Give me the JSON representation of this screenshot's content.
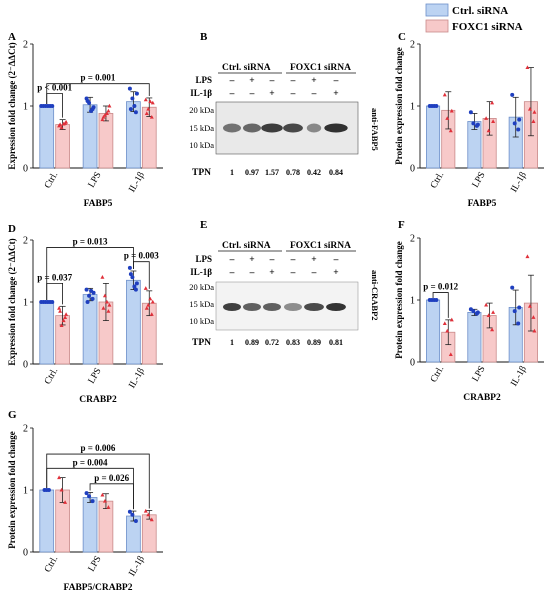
{
  "legend": {
    "items": [
      {
        "label": "Ctrl. siRNA",
        "color": "#bcd3f2"
      },
      {
        "label": "FOXC1 siRNA",
        "color": "#f7c9c9"
      }
    ]
  },
  "colors": {
    "ctrl_fill": "#bcd3f2",
    "foxc1_fill": "#f7c9c9",
    "ctrl_dot": "#1f3fbf",
    "foxc1_dot": "#e0303a",
    "err": "#222222"
  },
  "blots": [
    {
      "panel": "B",
      "antibody": "anti-FABP5",
      "header": [
        "Ctrl. siRNA",
        "FOXC1 siRNA"
      ],
      "treat_rows": [
        {
          "label": "LPS",
          "marks": [
            "–",
            "+",
            "–",
            "–",
            "+",
            "–"
          ]
        },
        {
          "label": "IL-1β",
          "marks": [
            "–",
            "–",
            "+",
            "–",
            "–",
            "+"
          ]
        }
      ],
      "markers": [
        "20 kDa",
        "15 kDa",
        "10 kDa"
      ],
      "tpn_label": "TPN",
      "tpn": [
        "1",
        "0.97",
        "1.57",
        "0.78",
        "0.42",
        "0.84"
      ]
    },
    {
      "panel": "E",
      "antibody": "anti-CRABP2",
      "header": [
        "Ctrl. siRNA",
        "FOXC1 siRNA"
      ],
      "treat_rows": [
        {
          "label": "LPS",
          "marks": [
            "–",
            "+",
            "–",
            "–",
            "+",
            "–"
          ]
        },
        {
          "label": "IL-1β",
          "marks": [
            "–",
            "–",
            "+",
            "–",
            "–",
            "+"
          ]
        }
      ],
      "markers": [
        "20 kDa",
        "15 kDa",
        "10 kDa"
      ],
      "tpn_label": "TPN",
      "tpn": [
        "1",
        "0.89",
        "0.72",
        "0.83",
        "0.89",
        "0.81"
      ]
    }
  ],
  "chart_data": [
    {
      "panel": "A",
      "type": "bar",
      "ylabel": "Expression fold change (2⁻ΔΔCt)",
      "xlabel": "FABP5",
      "categories": [
        "Ctrl.",
        "LPS",
        "IL-1β"
      ],
      "ylim": [
        0,
        2
      ],
      "yticks": [
        "0",
        "1",
        "2"
      ],
      "series": [
        {
          "name": "Ctrl. siRNA",
          "values": [
            1.0,
            1.02,
            1.07
          ],
          "errors": [
            0.0,
            0.12,
            0.16
          ]
        },
        {
          "name": "FOXC1 siRNA",
          "values": [
            0.7,
            0.88,
            0.98
          ],
          "errors": [
            0.08,
            0.12,
            0.15
          ]
        }
      ],
      "points": [
        [
          [
            1,
            1,
            1,
            1,
            1,
            1
          ],
          [
            0.68,
            0.72,
            0.65,
            0.74,
            0.7,
            0.71
          ]
        ],
        [
          [
            1.12,
            0.95,
            1.05,
            0.98,
            1.08,
            0.92
          ],
          [
            0.78,
            0.92,
            0.85,
            1.0,
            0.82,
            0.88
          ]
        ],
        [
          [
            1.28,
            0.9,
            1.12,
            1.2,
            0.95,
            1.0
          ],
          [
            1.1,
            0.82,
            0.95,
            1.05,
            0.88,
            1.07
          ]
        ]
      ],
      "brackets": [
        {
          "from": [
            0,
            0
          ],
          "to": [
            0,
            1
          ],
          "y": 1.2,
          "text": "p < 0.001"
        },
        {
          "from": [
            0,
            0
          ],
          "to": [
            2,
            1
          ],
          "y": 1.36,
          "text": "p = 0.001"
        }
      ]
    },
    {
      "panel": "C",
      "type": "bar",
      "ylabel": "Protein expression fold change",
      "xlabel": "FABP5",
      "categories": [
        "Ctrl.",
        "LPS",
        "IL-1β"
      ],
      "ylim": [
        0,
        2
      ],
      "yticks": [
        "0",
        "1",
        "2"
      ],
      "series": [
        {
          "name": "Ctrl. siRNA",
          "values": [
            1.0,
            0.75,
            0.82
          ],
          "errors": [
            0.0,
            0.13,
            0.32
          ]
        },
        {
          "name": "FOXC1 siRNA",
          "values": [
            0.93,
            0.8,
            1.07
          ],
          "errors": [
            0.3,
            0.27,
            0.55
          ]
        }
      ],
      "points": [
        [
          [
            1,
            1,
            1,
            1
          ],
          [
            1.18,
            0.6,
            0.8,
            0.92
          ]
        ],
        [
          [
            0.9,
            0.68,
            0.72,
            0.7
          ],
          [
            0.8,
            1.05,
            0.6,
            0.75
          ]
        ],
        [
          [
            1.18,
            0.62,
            0.72,
            0.78
          ],
          [
            1.62,
            0.75,
            0.95,
            0.9
          ]
        ]
      ],
      "brackets": []
    },
    {
      "panel": "D",
      "type": "bar",
      "ylabel": "Expression fold change (2⁻ΔΔCt)",
      "xlabel": "CRABP2",
      "categories": [
        "Ctrl.",
        "LPS",
        "IL-1β"
      ],
      "ylim": [
        0,
        2
      ],
      "yticks": [
        "0",
        "1",
        "2"
      ],
      "series": [
        {
          "name": "Ctrl. siRNA",
          "values": [
            1.0,
            1.12,
            1.35
          ],
          "errors": [
            0.0,
            0.1,
            0.15
          ]
        },
        {
          "name": "FOXC1 siRNA",
          "values": [
            0.78,
            1.0,
            0.98
          ],
          "errors": [
            0.15,
            0.3,
            0.2
          ]
        }
      ],
      "points": [
        [
          [
            1,
            1,
            1,
            1,
            1,
            1
          ],
          [
            0.9,
            0.75,
            0.62,
            0.8,
            0.85,
            0.7
          ]
        ],
        [
          [
            1.2,
            1.05,
            1.1,
            1.15,
            1.0,
            1.18
          ],
          [
            1.4,
            0.85,
            1.1,
            0.95,
            0.9,
            1.0
          ]
        ],
        [
          [
            1.55,
            1.2,
            1.4,
            1.3,
            1.45,
            1.25
          ],
          [
            1.22,
            0.8,
            0.95,
            1.0,
            0.9,
            1.05
          ]
        ]
      ],
      "brackets": [
        {
          "from": [
            0,
            0
          ],
          "to": [
            0,
            1
          ],
          "y": 1.3,
          "text": "p = 0.037"
        },
        {
          "from": [
            2,
            0
          ],
          "to": [
            2,
            1
          ],
          "y": 1.65,
          "text": "p = 0.003"
        },
        {
          "from": [
            0,
            0
          ],
          "to": [
            2,
            0
          ],
          "y": 1.88,
          "text": "p = 0.013"
        }
      ]
    },
    {
      "panel": "F",
      "type": "bar",
      "ylabel": "Protein expression fold change",
      "xlabel": "CRABP2",
      "categories": [
        "Ctrl.",
        "LPS",
        "IL-1β"
      ],
      "ylim": [
        0,
        2
      ],
      "yticks": [
        "0",
        "1",
        "2"
      ],
      "series": [
        {
          "name": "Ctrl. siRNA",
          "values": [
            1.0,
            0.8,
            0.88
          ],
          "errors": [
            0.0,
            0.05,
            0.28
          ]
        },
        {
          "name": "FOXC1 siRNA",
          "values": [
            0.48,
            0.75,
            0.95
          ],
          "errors": [
            0.2,
            0.2,
            0.45
          ]
        }
      ],
      "points": [
        [
          [
            1,
            1,
            1,
            1
          ],
          [
            0.62,
            0.12,
            0.5,
            0.68
          ]
        ],
        [
          [
            0.85,
            0.78,
            0.82,
            0.8
          ],
          [
            0.92,
            0.52,
            0.75,
            0.8
          ]
        ],
        [
          [
            1.2,
            0.62,
            0.82,
            0.88
          ],
          [
            1.7,
            0.72,
            0.9,
            0.5
          ]
        ]
      ],
      "brackets": [
        {
          "from": [
            0,
            0
          ],
          "to": [
            0,
            1
          ],
          "y": 1.12,
          "text": "p = 0.012"
        }
      ]
    },
    {
      "panel": "G",
      "type": "bar",
      "ylabel": "Protein expression fold change",
      "xlabel": "FABP5/CRABP2",
      "categories": [
        "Ctrl.",
        "LPS",
        "IL-1β"
      ],
      "ylim": [
        0,
        2
      ],
      "yticks": [
        "0",
        "1",
        "2"
      ],
      "series": [
        {
          "name": "Ctrl. siRNA",
          "values": [
            1.0,
            0.88,
            0.58
          ],
          "errors": [
            0.0,
            0.08,
            0.08
          ]
        },
        {
          "name": "FOXC1 siRNA",
          "values": [
            1.0,
            0.82,
            0.6
          ],
          "errors": [
            0.2,
            0.12,
            0.07
          ]
        }
      ],
      "points": [
        [
          [
            1,
            1,
            1
          ],
          [
            1.2,
            0.8,
            1.0
          ]
        ],
        [
          [
            0.95,
            0.82,
            0.9
          ],
          [
            0.92,
            0.72,
            0.82
          ]
        ],
        [
          [
            0.65,
            0.5,
            0.6
          ],
          [
            0.66,
            0.52,
            0.6
          ]
        ]
      ],
      "brackets": [
        {
          "from": [
            1,
            0
          ],
          "to": [
            2,
            0
          ],
          "y": 1.1,
          "text": "p = 0.026"
        },
        {
          "from": [
            0,
            0
          ],
          "to": [
            2,
            0
          ],
          "y": 1.35,
          "text": "p = 0.004"
        },
        {
          "from": [
            0,
            0
          ],
          "to": [
            2,
            1
          ],
          "y": 1.58,
          "text": "p = 0.006"
        }
      ]
    }
  ]
}
